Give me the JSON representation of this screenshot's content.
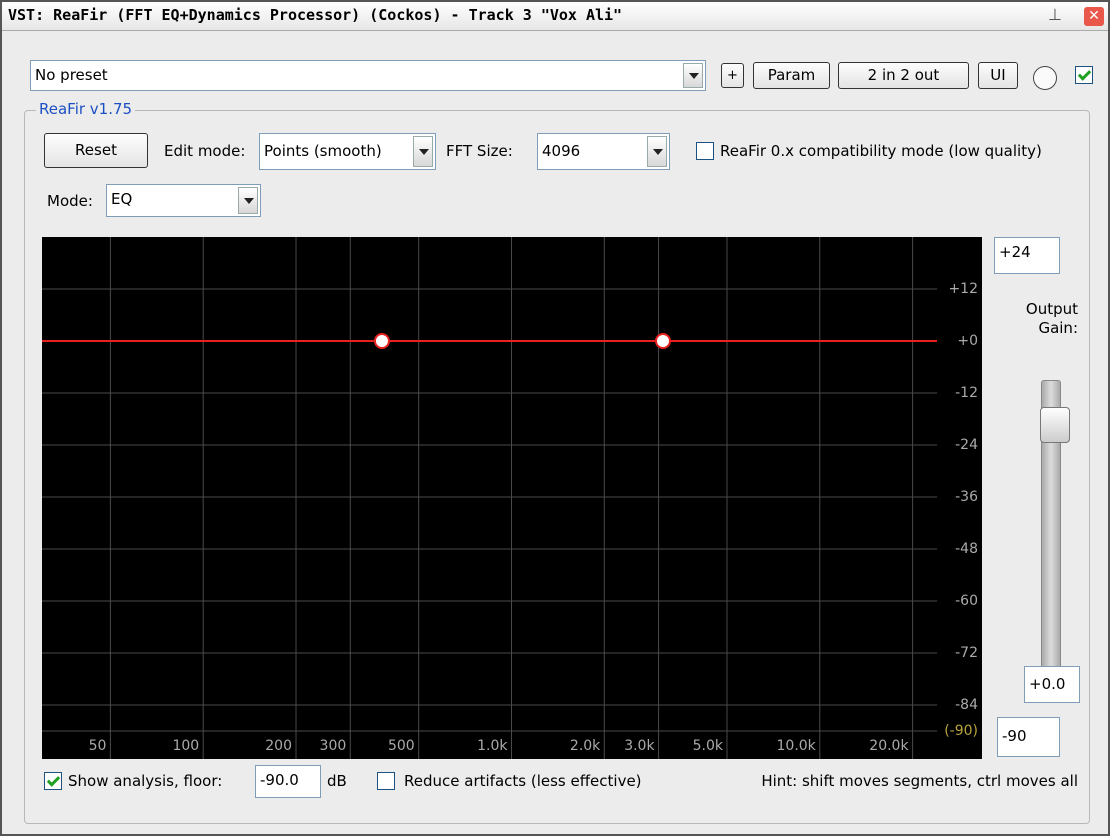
{
  "window": {
    "title": "VST: ReaFir (FFT EQ+Dynamics Processor) (Cockos) - Track 3 \"Vox Ali\""
  },
  "toolbar": {
    "preset": "No preset",
    "buttons": [
      "+",
      "Param",
      "2 in 2 out",
      "UI"
    ],
    "enabled": true
  },
  "group_label": "ReaFir v1.75",
  "controls": {
    "reset": "Reset",
    "edit_mode_label": "Edit mode:",
    "edit_mode": "Points (smooth)",
    "fft_size_label": "FFT Size:",
    "fft_size": "4096",
    "compat_label": "ReaFir 0.x compatibility mode (low quality)",
    "compat_checked": false,
    "mode_label": "Mode:",
    "mode": "EQ"
  },
  "graph": {
    "xlog": true,
    "xlim": [
      30,
      24000
    ],
    "ylim": [
      -90,
      24
    ],
    "xticks": [
      50,
      100,
      200,
      300,
      500,
      {
        "value": 1000,
        "label": "1.0k"
      },
      {
        "value": 2000,
        "label": "2.0k"
      },
      {
        "value": 3000,
        "label": "3.0k"
      },
      {
        "value": 5000,
        "label": "5.0k"
      },
      {
        "value": 10000,
        "label": "10.0k"
      },
      {
        "value": 20000,
        "label": "20.0k"
      }
    ],
    "yticks": [
      {
        "value": 12,
        "label": "+12"
      },
      {
        "value": 0,
        "label": "+0"
      },
      -12,
      -24,
      -36,
      -48,
      -60,
      -72,
      -84,
      {
        "value": -90,
        "label": "(-90)"
      }
    ],
    "points": {
      "x": [
        380,
        3100
      ],
      "values": [
        0,
        0
      ]
    },
    "line_color": "#e8211f"
  },
  "gain": {
    "max_label": "+24",
    "label": "Output Gain:",
    "value": "+0.0",
    "min_label": "-90"
  },
  "footer": {
    "analysis_label": "Show analysis, floor:",
    "analysis_checked": true,
    "floor": "-90.0",
    "floor_unit": "dB",
    "reduce_label": "Reduce artifacts (less effective)",
    "reduce_checked": false,
    "hint": "Hint: shift moves segments, ctrl moves all"
  }
}
